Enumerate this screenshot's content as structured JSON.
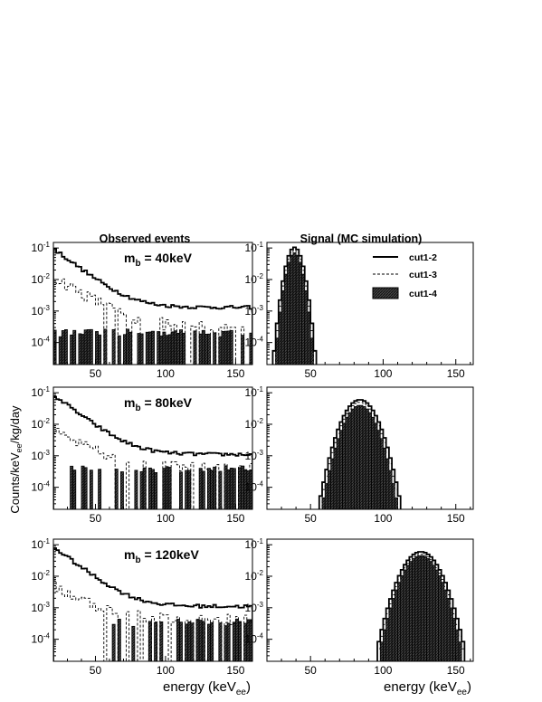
{
  "figure": {
    "col_titles": [
      "Observed events",
      "Signal (MC simulation)"
    ],
    "ylabel": "Counts/keV",
    "ylabel_sub": "ee",
    "ylabel_tail": "/kg/day",
    "xlabel": "energy (keV",
    "xlabel_sub": "ee",
    "xlabel_tail": ")",
    "mass_prefix": "m",
    "mass_sub": "b",
    "legend": [
      {
        "name": "cut1-2",
        "style": "solid"
      },
      {
        "name": "cut1-3",
        "style": "dashed"
      },
      {
        "name": "cut1-4",
        "style": "filled"
      }
    ]
  },
  "chart_data": [
    {
      "type": "histogram",
      "panel": "observed",
      "mass_label": " = 40keV",
      "xlim": [
        20,
        162
      ],
      "ylim": [
        2e-05,
        0.15
      ],
      "yscale": "log",
      "xticks": [
        50,
        100,
        150
      ],
      "yticks": [
        0.1,
        0.01,
        0.001,
        0.0001
      ],
      "ytick_labels": [
        "10",
        "10",
        "10",
        "10"
      ],
      "ytick_exps": [
        "-1",
        "-2",
        "-3",
        "-4"
      ],
      "series": [
        {
          "name": "cut1-2",
          "model": "decay",
          "a": 0.095,
          "tau": 13,
          "floor": 0.0013,
          "noise": 0.12
        },
        {
          "name": "cut1-3",
          "model": "decay",
          "a": 0.012,
          "tau": 16,
          "floor": 0.0003,
          "noise": 0.45,
          "gap": 0.5
        },
        {
          "name": "cut1-4",
          "model": "sparse",
          "level": 0.00019,
          "p": 0.6,
          "start": 20
        }
      ]
    },
    {
      "type": "histogram",
      "panel": "signal",
      "mass_label": "",
      "xlim": [
        20,
        162
      ],
      "ylim": [
        2e-05,
        0.15
      ],
      "yscale": "log",
      "xticks": [
        50,
        100,
        150
      ],
      "yticks": [
        0.1,
        0.01,
        0.001,
        0.0001
      ],
      "ytick_labels": [
        "10",
        "10",
        "10",
        "10"
      ],
      "ytick_exps": [
        "-1",
        "-2",
        "-3",
        "-4"
      ],
      "series": [
        {
          "name": "cut1-2",
          "model": "gauss",
          "peak": 0.105,
          "mu": 39,
          "sigma": 3.6,
          "cut": 4e-05
        },
        {
          "name": "cut1-3",
          "model": "gauss",
          "peak": 0.085,
          "mu": 39,
          "sigma": 3.5,
          "cut": 4e-05
        },
        {
          "name": "cut1-4",
          "model": "gauss",
          "peak": 0.07,
          "mu": 39,
          "sigma": 3.4,
          "cut": 4e-05
        }
      ]
    },
    {
      "type": "histogram",
      "panel": "observed",
      "mass_label": " = 80keV",
      "xlim": [
        20,
        162
      ],
      "ylim": [
        2e-05,
        0.15
      ],
      "yscale": "log",
      "xticks": [
        50,
        100,
        150
      ],
      "yticks": [
        0.1,
        0.01,
        0.001,
        0.0001
      ],
      "ytick_labels": [
        "10",
        "10",
        "10",
        "10"
      ],
      "ytick_exps": [
        "-1",
        "-2",
        "-3",
        "-4"
      ],
      "series": [
        {
          "name": "cut1-2",
          "model": "decay",
          "a": 0.085,
          "tau": 13,
          "floor": 0.0011,
          "noise": 0.12
        },
        {
          "name": "cut1-3",
          "model": "decay",
          "a": 0.0055,
          "tau": 18,
          "floor": 0.0004,
          "noise": 0.4,
          "gap": 0.4
        },
        {
          "name": "cut1-4",
          "model": "sparse",
          "level": 0.00035,
          "p": 0.45,
          "start": 28
        }
      ]
    },
    {
      "type": "histogram",
      "panel": "signal",
      "mass_label": "",
      "xlim": [
        20,
        162
      ],
      "ylim": [
        2e-05,
        0.15
      ],
      "yscale": "log",
      "xticks": [
        50,
        100,
        150
      ],
      "yticks": [
        0.1,
        0.01,
        0.001,
        0.0001
      ],
      "ytick_labels": [
        "10",
        "10",
        "10",
        "10"
      ],
      "ytick_exps": [
        "-1",
        "-2",
        "-3",
        "-4"
      ],
      "series": [
        {
          "name": "cut1-2",
          "model": "gauss",
          "peak": 0.06,
          "mu": 84,
          "sigma": 7.2,
          "cut": 4e-05
        },
        {
          "name": "cut1-3",
          "model": "gauss",
          "peak": 0.05,
          "mu": 84,
          "sigma": 7.0,
          "cut": 4e-05
        },
        {
          "name": "cut1-4",
          "model": "gauss",
          "peak": 0.04,
          "mu": 84,
          "sigma": 6.8,
          "cut": 4e-05
        }
      ]
    },
    {
      "type": "histogram",
      "panel": "observed",
      "mass_label": " = 120keV",
      "xlim": [
        20,
        162
      ],
      "ylim": [
        2e-05,
        0.15
      ],
      "yscale": "log",
      "xticks": [
        50,
        100,
        150
      ],
      "yticks": [
        0.1,
        0.01,
        0.001,
        0.0001
      ],
      "ytick_labels": [
        "10",
        "10",
        "10",
        "10"
      ],
      "ytick_exps": [
        "-1",
        "-2",
        "-3",
        "-4"
      ],
      "series": [
        {
          "name": "cut1-2",
          "model": "decay",
          "a": 0.085,
          "tau": 13,
          "floor": 0.0011,
          "noise": 0.12
        },
        {
          "name": "cut1-3",
          "model": "decay",
          "a": 0.0045,
          "tau": 18,
          "floor": 0.0004,
          "noise": 0.45,
          "gap": 0.45
        },
        {
          "name": "cut1-4",
          "model": "sparse",
          "level": 0.00032,
          "p": 0.45,
          "start": 60
        }
      ]
    },
    {
      "type": "histogram",
      "panel": "signal",
      "mass_label": "",
      "xlim": [
        20,
        162
      ],
      "ylim": [
        2e-05,
        0.15
      ],
      "yscale": "log",
      "xticks": [
        50,
        100,
        150
      ],
      "yticks": [
        0.1,
        0.01,
        0.001,
        0.0001
      ],
      "ytick_labels": [
        "10",
        "10",
        "10",
        "10"
      ],
      "ytick_exps": [
        "-1",
        "-2",
        "-3",
        "-4"
      ],
      "series": [
        {
          "name": "cut1-2",
          "model": "gauss",
          "peak": 0.06,
          "mu": 126,
          "sigma": 8.0,
          "cut": 4e-05
        },
        {
          "name": "cut1-3",
          "model": "gauss",
          "peak": 0.05,
          "mu": 126,
          "sigma": 7.8,
          "cut": 4e-05
        },
        {
          "name": "cut1-4",
          "model": "gauss",
          "peak": 0.045,
          "mu": 126,
          "sigma": 7.6,
          "cut": 4e-05
        }
      ]
    }
  ]
}
